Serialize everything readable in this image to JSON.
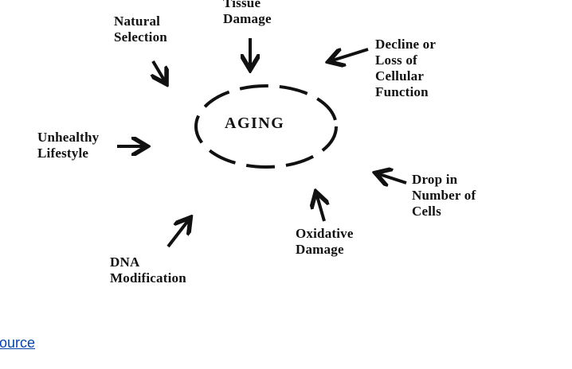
{
  "diagram": {
    "center": "AGING",
    "labels": {
      "tissue_damage": [
        "Tissue",
        "Damage"
      ],
      "natural_selection": [
        "Natural",
        "Selection"
      ],
      "decline": [
        "Decline or",
        "Loss of",
        "Cellular",
        "Function"
      ],
      "unhealthy_lifestyle": [
        "Unhealthy",
        "Lifestyle"
      ],
      "drop_in_cells": [
        "Drop in",
        "Number of",
        "Cells"
      ],
      "oxidative_damage": [
        "Oxidative",
        "Damage"
      ],
      "dna_modification": [
        "DNA",
        "Modification"
      ]
    },
    "ink_color": "#111111"
  },
  "source_link": {
    "text": "ource",
    "color": "#0645ad"
  }
}
